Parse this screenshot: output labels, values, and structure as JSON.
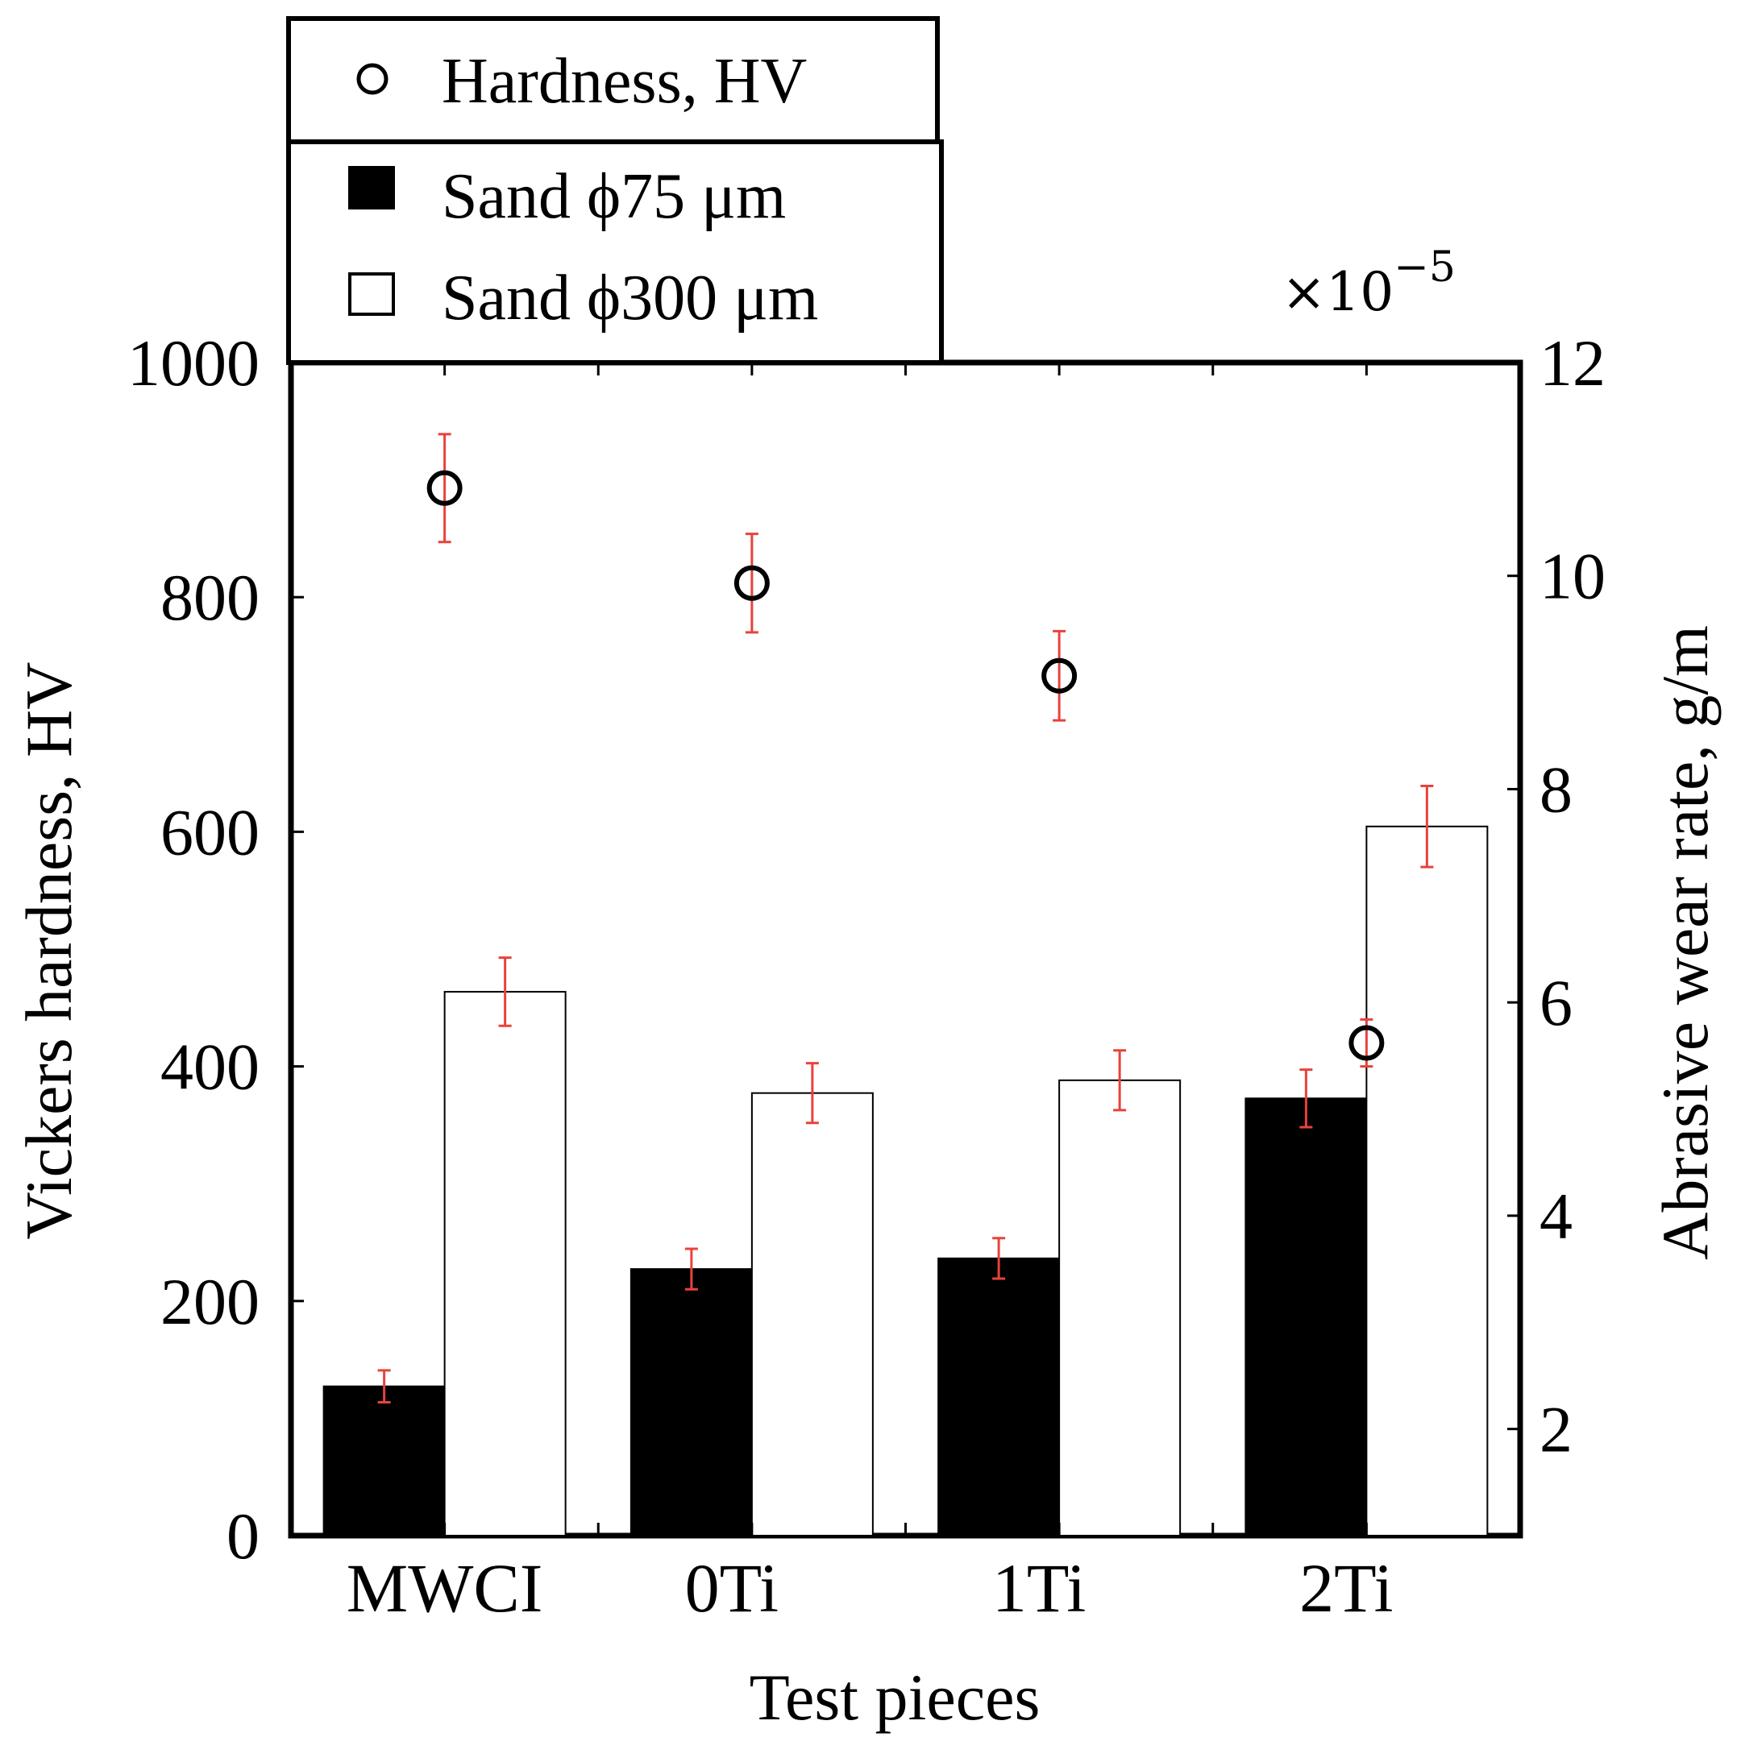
{
  "chart_data": {
    "type": "bar",
    "categories": [
      "MWCI",
      "0Ti",
      "1Ti",
      "2Ti"
    ],
    "xlabel": "Test pieces",
    "ylabel_left": "Vickers hardness, HV",
    "ylabel_right": "Abrasive wear rate, g/m",
    "right_axis_multiplier": "×10",
    "right_axis_multiplier_exp": "−5",
    "ylim_left": [
      0,
      1000
    ],
    "ylim_right": [
      1,
      12
    ],
    "yticks_left": [
      0,
      200,
      400,
      600,
      800,
      1000
    ],
    "yticks_right": [
      2,
      4,
      6,
      8,
      10,
      12
    ],
    "grid": false,
    "legend_position": "top-left, above plot",
    "error_bar_color": "#e8423c",
    "series": [
      {
        "name": "Hardness, HV",
        "kind": "scatter",
        "axis": "left",
        "marker": "open-circle",
        "values": [
          893,
          812,
          733,
          420
        ],
        "errors": [
          46,
          42,
          38,
          20
        ]
      },
      {
        "name": "Sand ϕ75 μm",
        "kind": "bar",
        "axis": "right",
        "fill": "#000000",
        "values": [
          2.4,
          3.5,
          3.6,
          5.1
        ],
        "errors": [
          0.15,
          0.19,
          0.19,
          0.27
        ]
      },
      {
        "name": "Sand ϕ300 μm",
        "kind": "bar",
        "axis": "right",
        "fill": "#ffffff",
        "values": [
          6.1,
          5.15,
          5.27,
          7.65
        ],
        "errors": [
          0.32,
          0.28,
          0.28,
          0.38
        ]
      }
    ]
  }
}
